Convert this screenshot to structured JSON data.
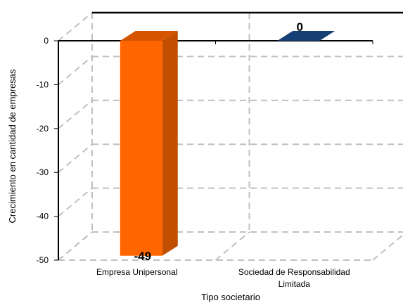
{
  "chart_data": {
    "type": "bar",
    "categories": [
      "Empresa Unipersonal",
      "Sociedad de Responsabilidad Limitada"
    ],
    "category_lines": [
      [
        "Empresa Unipersonal"
      ],
      [
        "Sociedad de Responsabilidad",
        "Limitada"
      ]
    ],
    "values": [
      -49,
      0
    ],
    "data_labels": [
      "-49",
      "0"
    ],
    "xlabel": "Tipo societario",
    "ylabel": "Crecimiento en cantidad de empresas",
    "ylim": [
      -50,
      0
    ],
    "yticks": [
      0,
      -10,
      -20,
      -30,
      -40,
      -50
    ],
    "grid": true,
    "style": "3d",
    "colors": {
      "bars": [
        "#ff6600",
        "#0c2d5a"
      ],
      "bar_shade": [
        "#c24e00",
        "#071b38"
      ],
      "bar_top": [
        "#d45400",
        "#163f75"
      ],
      "grid": "#c0c0c0",
      "axis": "#000000"
    }
  }
}
